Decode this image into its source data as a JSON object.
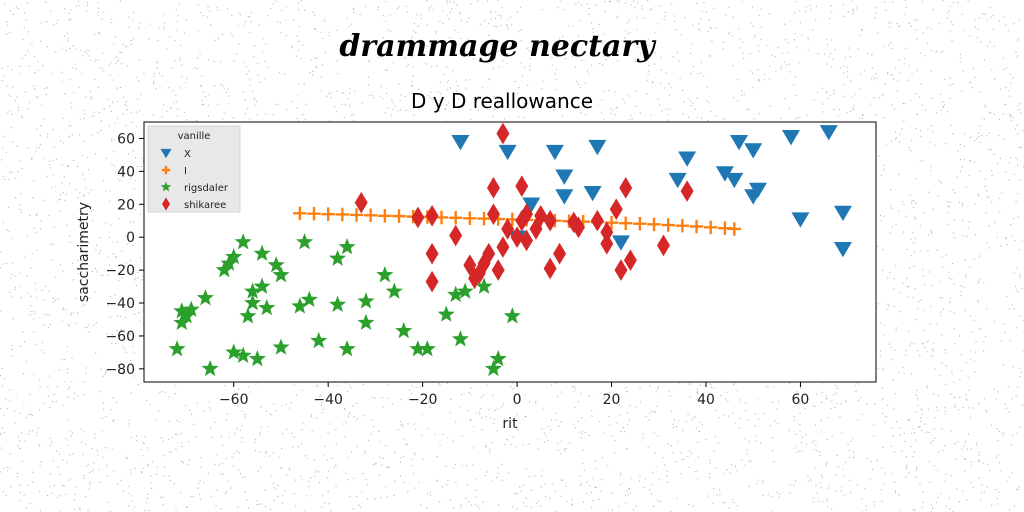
{
  "chart_data": {
    "type": "scatter",
    "suptitle": "drammage nectary",
    "title": "D y D reallowance",
    "xlabel": "rit",
    "ylabel": "saccharimetry",
    "xlim": [
      -79,
      76
    ],
    "ylim": [
      -88,
      70
    ],
    "xticks": [
      -60,
      -40,
      -20,
      0,
      20,
      40,
      60
    ],
    "yticks": [
      -80,
      -60,
      -40,
      -20,
      0,
      20,
      40,
      60
    ],
    "grid": false,
    "legend": {
      "title": "vanille",
      "position": "top-left"
    },
    "series": [
      {
        "name": "X",
        "marker": "triangle-down",
        "color": "#1f77b4",
        "points": [
          [
            -12,
            58
          ],
          [
            -2,
            52
          ],
          [
            8,
            52
          ],
          [
            17,
            55
          ],
          [
            10,
            37
          ],
          [
            16,
            27
          ],
          [
            3,
            20
          ],
          [
            0,
            0
          ],
          [
            22,
            -3
          ],
          [
            34,
            35
          ],
          [
            36,
            48
          ],
          [
            44,
            39
          ],
          [
            46,
            35
          ],
          [
            47,
            58
          ],
          [
            50,
            53
          ],
          [
            50,
            25
          ],
          [
            51,
            29
          ],
          [
            58,
            61
          ],
          [
            60,
            11
          ],
          [
            66,
            64
          ],
          [
            69,
            15
          ],
          [
            69,
            -7
          ],
          [
            10,
            25
          ]
        ]
      },
      {
        "name": "I",
        "marker": "plus",
        "color": "#ff7f0e",
        "points": [
          [
            -46,
            14.5
          ],
          [
            -43,
            14.3
          ],
          [
            -40,
            14.0
          ],
          [
            -37,
            13.8
          ],
          [
            -34,
            13.5
          ],
          [
            -31,
            13.3
          ],
          [
            -28,
            13.0
          ],
          [
            -25,
            12.8
          ],
          [
            -22,
            12.5
          ],
          [
            -19,
            12.3
          ],
          [
            -16,
            12.0
          ],
          [
            -13,
            11.8
          ],
          [
            -10,
            11.5
          ],
          [
            -7,
            11.3
          ],
          [
            -4,
            11.0
          ],
          [
            -1,
            10.8
          ],
          [
            2,
            10.5
          ],
          [
            5,
            10.2
          ],
          [
            8,
            10.0
          ],
          [
            11,
            9.7
          ],
          [
            14,
            9.4
          ],
          [
            17,
            9.1
          ],
          [
            20,
            8.8
          ],
          [
            23,
            8.5
          ],
          [
            26,
            8.2
          ],
          [
            29,
            7.8
          ],
          [
            32,
            7.4
          ],
          [
            35,
            7.0
          ],
          [
            38,
            6.5
          ],
          [
            41,
            6.0
          ],
          [
            44,
            5.5
          ],
          [
            46,
            5.0
          ]
        ]
      },
      {
        "name": "rigsdaler",
        "marker": "star",
        "color": "#2ca02c",
        "points": [
          [
            -72,
            -68
          ],
          [
            -71,
            -45
          ],
          [
            -71,
            -52
          ],
          [
            -70,
            -48
          ],
          [
            -69,
            -44
          ],
          [
            -66,
            -37
          ],
          [
            -65,
            -80
          ],
          [
            -62,
            -20
          ],
          [
            -61,
            -16
          ],
          [
            -60,
            -12
          ],
          [
            -60,
            -70
          ],
          [
            -58,
            -3
          ],
          [
            -58,
            -72
          ],
          [
            -57,
            -48
          ],
          [
            -56,
            -40
          ],
          [
            -56,
            -33
          ],
          [
            -55,
            -74
          ],
          [
            -54,
            -10
          ],
          [
            -54,
            -30
          ],
          [
            -53,
            -43
          ],
          [
            -51,
            -17
          ],
          [
            -50,
            -23
          ],
          [
            -50,
            -67
          ],
          [
            -46,
            -42
          ],
          [
            -45,
            -3
          ],
          [
            -44,
            -38
          ],
          [
            -42,
            -63
          ],
          [
            -38,
            -13
          ],
          [
            -38,
            -41
          ],
          [
            -36,
            -6
          ],
          [
            -36,
            -68
          ],
          [
            -32,
            -52
          ],
          [
            -32,
            -39
          ],
          [
            -28,
            -23
          ],
          [
            -26,
            -33
          ],
          [
            -24,
            -57
          ],
          [
            -21,
            -68
          ],
          [
            -19,
            -68
          ],
          [
            -15,
            -47
          ],
          [
            -13,
            -35
          ],
          [
            -12,
            -62
          ],
          [
            -11,
            -33
          ],
          [
            -7,
            -30
          ],
          [
            -5,
            -80
          ],
          [
            -4,
            -74
          ],
          [
            -1,
            -48
          ]
        ]
      },
      {
        "name": "shikaree",
        "marker": "diamond",
        "color": "#d62728",
        "points": [
          [
            -33,
            21
          ],
          [
            -21,
            12
          ],
          [
            -18,
            13
          ],
          [
            -18,
            -10
          ],
          [
            -18,
            -27
          ],
          [
            -13,
            1
          ],
          [
            -10,
            -17
          ],
          [
            -9,
            -25
          ],
          [
            -8,
            -22
          ],
          [
            -7,
            -16
          ],
          [
            -6,
            -10
          ],
          [
            -5,
            30
          ],
          [
            -5,
            14
          ],
          [
            -4,
            -20
          ],
          [
            -3,
            63
          ],
          [
            -3,
            -6
          ],
          [
            -2,
            5
          ],
          [
            0,
            0
          ],
          [
            1,
            31
          ],
          [
            1,
            10
          ],
          [
            2,
            14
          ],
          [
            2,
            -2
          ],
          [
            4,
            5
          ],
          [
            5,
            13
          ],
          [
            7,
            10
          ],
          [
            7,
            -19
          ],
          [
            9,
            -10
          ],
          [
            12,
            9
          ],
          [
            13,
            6
          ],
          [
            17,
            10
          ],
          [
            19,
            -4
          ],
          [
            19,
            3
          ],
          [
            21,
            17
          ],
          [
            22,
            -20
          ],
          [
            23,
            30
          ],
          [
            24,
            -14
          ],
          [
            31,
            -5
          ],
          [
            36,
            28
          ]
        ]
      }
    ]
  }
}
